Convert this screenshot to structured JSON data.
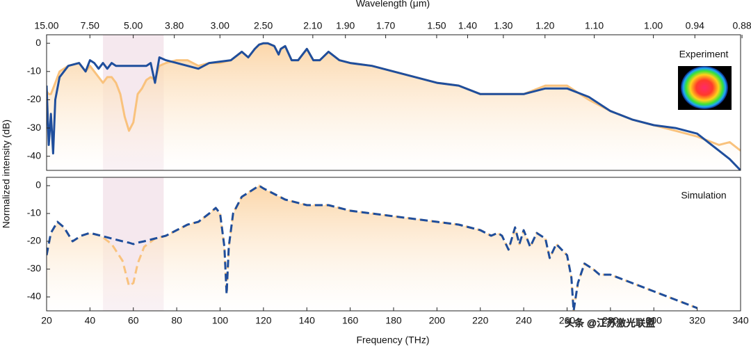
{
  "chart_data": [
    {
      "type": "line",
      "x2label": "Wavelength (μm)",
      "ylabel": "Normalized intensity (dB)",
      "annotation": "Experiment",
      "xlim": [
        20,
        340
      ],
      "ylim": [
        -45,
        3
      ],
      "yticks": [
        -40,
        -30,
        -20,
        -10,
        0
      ],
      "x2ticks": [
        {
          "value": 15,
          "label": "15.00"
        },
        {
          "value": 7.5,
          "label": "7.50"
        },
        {
          "value": 5,
          "label": "5.00"
        },
        {
          "value": 3.8,
          "label": "3.80"
        },
        {
          "value": 3,
          "label": "3.00"
        },
        {
          "value": 2.5,
          "label": "2.50"
        },
        {
          "value": 2.1,
          "label": "2.10"
        },
        {
          "value": 1.9,
          "label": "1.90"
        },
        {
          "value": 1.7,
          "label": "1.70"
        },
        {
          "value": 1.5,
          "label": "1.50"
        },
        {
          "value": 1.4,
          "label": "1.40"
        },
        {
          "value": 1.3,
          "label": "1.30"
        },
        {
          "value": 1.2,
          "label": "1.20"
        },
        {
          "value": 1.1,
          "label": "1.10"
        },
        {
          "value": 1,
          "label": "1.00"
        },
        0.94,
        0.88
      ],
      "shaded_range": [
        46,
        74
      ],
      "x": [
        20,
        21,
        22,
        23,
        24,
        26,
        30,
        35,
        38,
        40,
        42,
        44,
        46,
        48,
        50,
        52,
        54,
        56,
        58,
        60,
        62,
        64,
        66,
        68,
        70,
        72,
        75,
        80,
        85,
        90,
        95,
        100,
        105,
        110,
        113,
        116,
        118,
        120,
        122,
        125,
        127,
        128,
        130,
        133,
        136,
        140,
        143,
        146,
        150,
        155,
        160,
        170,
        180,
        190,
        200,
        210,
        220,
        230,
        240,
        250,
        260,
        270,
        280,
        290,
        300,
        310,
        320,
        330,
        335,
        340
      ],
      "series": [
        {
          "color": "#f9c27d",
          "fill": true,
          "dash": false,
          "values": [
            -17,
            -18,
            -18,
            -16,
            -14,
            -10,
            -8,
            -7,
            -10,
            -8,
            -10,
            -12,
            -14,
            -12,
            -12,
            -14,
            -18,
            -26,
            -31,
            -28,
            -18,
            -16,
            -13,
            -12,
            -13,
            -8,
            -7,
            -6,
            -6,
            -8,
            -7,
            -7,
            -6,
            -3,
            -5,
            -2,
            -0.5,
            0,
            0,
            -1,
            -4,
            -2,
            -1,
            -6,
            -6,
            -2,
            -6,
            -6,
            -3,
            -6,
            -7,
            -8,
            -10,
            -12,
            -14,
            -15,
            -18,
            -18,
            -18,
            -15,
            -15,
            -20,
            -24,
            -27,
            -29,
            -31,
            -33,
            -36,
            -35,
            -38
          ]
        },
        {
          "color": "#1f4e9c",
          "fill": false,
          "dash": false,
          "values": [
            -15,
            -36,
            -25,
            -39,
            -20,
            -12,
            -8,
            -7,
            -10,
            -6,
            -7,
            -9,
            -7,
            -9,
            -7,
            -8,
            -8,
            -8,
            -8,
            -8,
            -8,
            -8,
            -8,
            -7,
            -14,
            -5,
            -6,
            -7,
            -8,
            -9,
            -7,
            -6.5,
            -6,
            -3,
            -5,
            -2,
            -0.5,
            0,
            0,
            -1,
            -4,
            -2,
            -1,
            -6,
            -6,
            -2,
            -6,
            -6,
            -3,
            -6,
            -7,
            -8,
            -10,
            -12,
            -14,
            -15,
            -18,
            -18,
            -18,
            -16,
            -16,
            -19,
            -24,
            -27,
            -29,
            -30,
            -32,
            -38,
            -41,
            -45
          ]
        }
      ]
    },
    {
      "type": "line",
      "xlabel": "Frequency (THz)",
      "annotation": "Simulation",
      "xlim": [
        20,
        340
      ],
      "ylim": [
        -45,
        3
      ],
      "yticks": [
        -40,
        -30,
        -20,
        -10,
        0
      ],
      "xticks": [
        20,
        40,
        60,
        80,
        100,
        120,
        140,
        160,
        180,
        200,
        220,
        240,
        260,
        280,
        300,
        320,
        340
      ],
      "shaded_range": [
        46,
        74
      ],
      "x": [
        20,
        22,
        25,
        28,
        32,
        36,
        40,
        45,
        50,
        55,
        58,
        60,
        62,
        65,
        70,
        75,
        80,
        85,
        90,
        95,
        98,
        100,
        102,
        103,
        104,
        106,
        110,
        114,
        118,
        120,
        125,
        130,
        140,
        150,
        160,
        170,
        180,
        190,
        200,
        210,
        220,
        225,
        228,
        230,
        233,
        236,
        238,
        240,
        243,
        246,
        250,
        252,
        255,
        260,
        262,
        263,
        265,
        268,
        272,
        275,
        280,
        290,
        300,
        310,
        320
      ],
      "series": [
        {
          "color": "#f9c27d",
          "fill": true,
          "dash": true,
          "values": [
            -25,
            -17,
            -13,
            -15,
            -20,
            -18,
            -17,
            -18,
            -21,
            -27,
            -36,
            -35,
            -28,
            -22,
            -19,
            -18,
            -16,
            -14,
            -13,
            -10,
            -8,
            -10,
            -22,
            -39,
            -22,
            -10,
            -4,
            -2,
            0,
            -1,
            -3,
            -5,
            -7,
            -7,
            -9,
            -10,
            -11,
            -12,
            -13,
            -14,
            -16,
            -18,
            -17,
            -18,
            -23,
            -15,
            -21,
            -16,
            -22,
            -17,
            -19,
            -26,
            -21,
            -25,
            -33,
            -45,
            -35,
            -28,
            -30,
            -32,
            -32,
            -35,
            -38,
            -41,
            -44
          ]
        },
        {
          "color": "#1f4e9c",
          "fill": false,
          "dash": true,
          "values": [
            -25,
            -17,
            -13,
            -15,
            -20,
            -18,
            -17,
            -18,
            -19,
            -20,
            -20.5,
            -21,
            -20.5,
            -20,
            -19,
            -18,
            -16,
            -14,
            -13,
            -10,
            -8,
            -10,
            -22,
            -39,
            -22,
            -10,
            -4,
            -2,
            0,
            -1,
            -3,
            -5,
            -7,
            -7,
            -9,
            -10,
            -11,
            -12,
            -13,
            -14,
            -16,
            -18,
            -17,
            -18,
            -23,
            -15,
            -21,
            -16,
            -22,
            -17,
            -19,
            -26,
            -21,
            -25,
            -33,
            -45,
            -35,
            -28,
            -30,
            -32,
            -32,
            -35,
            -38,
            -41,
            -44
          ]
        }
      ]
    }
  ],
  "watermark": "头条 @江苏激光联盟"
}
